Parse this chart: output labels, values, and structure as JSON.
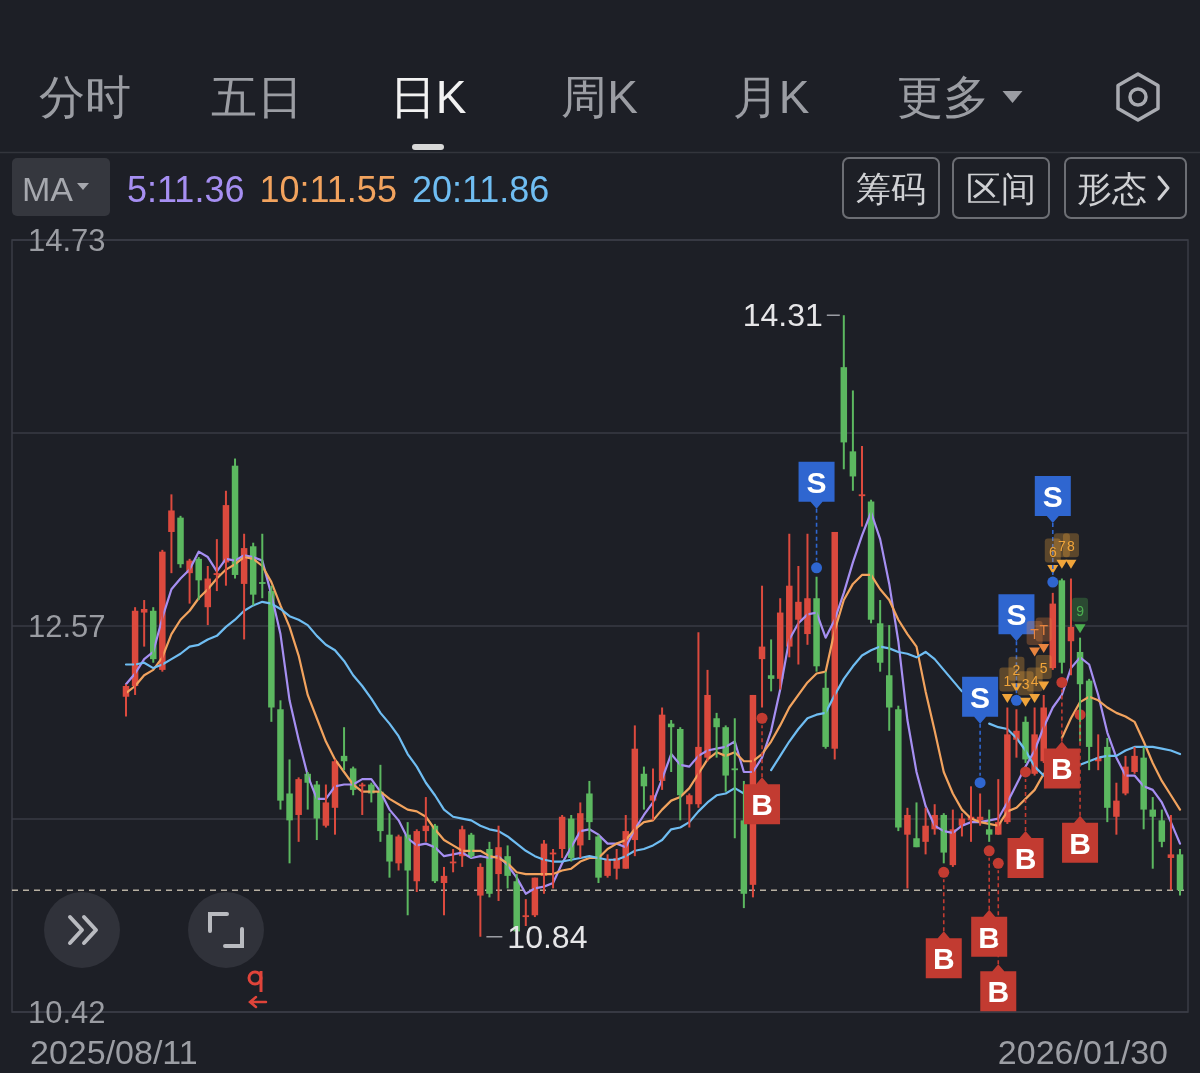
{
  "chart_data": {
    "type": "candlestick",
    "categories": [
      null,
      null,
      null,
      null,
      null,
      null,
      null,
      null,
      null,
      null,
      null,
      null,
      null,
      null,
      null,
      null,
      null,
      null,
      null,
      null,
      null,
      null,
      null,
      null,
      null,
      null,
      null,
      null,
      null,
      null,
      null,
      null,
      null,
      null,
      null,
      null,
      null,
      null,
      null,
      null,
      null,
      null,
      null,
      null,
      null,
      null,
      null,
      null,
      null,
      null,
      null,
      null,
      null,
      null,
      null,
      null,
      null,
      null,
      null,
      null,
      null,
      null,
      null,
      null,
      null,
      null,
      null,
      null,
      null,
      null,
      null,
      null,
      null,
      null,
      null,
      null,
      null,
      null,
      null,
      null,
      null,
      null,
      null,
      null,
      null,
      null,
      null,
      null,
      null,
      null,
      null,
      null,
      null,
      null,
      null,
      null,
      null,
      null,
      null,
      null,
      null,
      null,
      null,
      null,
      null,
      null,
      null,
      null,
      null,
      null,
      null,
      null,
      null,
      null,
      null,
      null,
      null
    ],
    "ohlc": [
      [
        12.18,
        12.25,
        12.07,
        12.24
      ],
      [
        12.24,
        12.68,
        12.19,
        12.66
      ],
      [
        12.65,
        12.72,
        12.46,
        12.67
      ],
      [
        12.66,
        12.68,
        12.37,
        12.39
      ],
      [
        12.33,
        13.0,
        12.32,
        12.99
      ],
      [
        13.1,
        13.31,
        12.87,
        13.22
      ],
      [
        13.18,
        13.19,
        12.9,
        12.92
      ],
      [
        12.87,
        12.95,
        12.7,
        12.94
      ],
      [
        12.95,
        12.96,
        12.72,
        12.83
      ],
      [
        12.68,
        12.91,
        12.58,
        12.84
      ],
      [
        12.86,
        13.06,
        12.77,
        12.87
      ],
      [
        12.93,
        13.33,
        12.8,
        13.25
      ],
      [
        13.47,
        13.51,
        12.84,
        12.86
      ],
      [
        12.81,
        13.09,
        12.5,
        13.01
      ],
      [
        13.02,
        13.04,
        12.69,
        12.75
      ],
      [
        12.82,
        13.09,
        12.73,
        12.81
      ],
      [
        12.77,
        12.8,
        12.04,
        12.12
      ],
      [
        12.11,
        12.16,
        11.55,
        11.6
      ],
      [
        11.64,
        11.83,
        11.25,
        11.49
      ],
      [
        11.52,
        11.73,
        11.37,
        11.72
      ],
      [
        11.75,
        11.76,
        11.55,
        11.7
      ],
      [
        11.69,
        11.71,
        11.38,
        11.5
      ],
      [
        11.46,
        11.69,
        11.45,
        11.59
      ],
      [
        11.56,
        11.83,
        11.41,
        11.82
      ],
      [
        11.85,
        12.01,
        11.77,
        11.82
      ],
      [
        11.78,
        11.79,
        11.63,
        11.66
      ],
      [
        11.68,
        11.7,
        11.52,
        11.69
      ],
      [
        11.69,
        11.7,
        11.59,
        11.64
      ],
      [
        11.65,
        11.8,
        11.37,
        11.43
      ],
      [
        11.41,
        11.53,
        11.17,
        11.26
      ],
      [
        11.25,
        11.41,
        11.21,
        11.4
      ],
      [
        11.41,
        11.48,
        10.96,
        11.21
      ],
      [
        11.15,
        11.44,
        11.09,
        11.43
      ],
      [
        11.43,
        11.62,
        11.37,
        11.46
      ],
      [
        11.46,
        11.47,
        11.14,
        11.15
      ],
      [
        11.14,
        11.23,
        10.96,
        11.18
      ],
      [
        11.25,
        11.33,
        11.2,
        11.26
      ],
      [
        11.29,
        11.46,
        11.23,
        11.44
      ],
      [
        11.41,
        11.42,
        11.28,
        11.29
      ],
      [
        11.07,
        11.25,
        10.84,
        11.23
      ],
      [
        11.33,
        11.37,
        11.06,
        11.08
      ],
      [
        11.19,
        11.46,
        11.04,
        11.34
      ],
      [
        11.29,
        11.35,
        11.11,
        11.18
      ],
      [
        11.15,
        11.19,
        10.87,
        10.87
      ],
      [
        10.95,
        11.05,
        10.9,
        10.96
      ],
      [
        10.96,
        11.17,
        10.95,
        11.17
      ],
      [
        11.18,
        11.38,
        11.08,
        11.36
      ],
      [
        11.3,
        11.33,
        11.11,
        11.31
      ],
      [
        11.33,
        11.52,
        11.28,
        11.51
      ],
      [
        11.5,
        11.52,
        11.26,
        11.28
      ],
      [
        11.35,
        11.59,
        11.28,
        11.53
      ],
      [
        11.64,
        11.71,
        11.38,
        11.48
      ],
      [
        11.4,
        11.41,
        11.14,
        11.17
      ],
      [
        11.18,
        11.3,
        11.17,
        11.27
      ],
      [
        11.22,
        11.33,
        11.16,
        11.28
      ],
      [
        11.22,
        11.52,
        11.22,
        11.43
      ],
      [
        11.38,
        12.02,
        11.29,
        11.89
      ],
      [
        11.75,
        11.79,
        11.55,
        11.68
      ],
      [
        11.6,
        11.78,
        11.49,
        11.63
      ],
      [
        11.71,
        12.12,
        11.66,
        12.08
      ],
      [
        12.03,
        12.05,
        11.76,
        12.01
      ],
      [
        12.0,
        12.01,
        11.49,
        11.63
      ],
      [
        11.58,
        11.64,
        11.45,
        11.63
      ],
      [
        11.58,
        12.54,
        11.56,
        11.9
      ],
      [
        11.84,
        12.33,
        11.82,
        12.19
      ],
      [
        12.06,
        12.09,
        11.84,
        12.01
      ],
      [
        12.01,
        12.02,
        11.65,
        11.74
      ],
      [
        11.78,
        12.06,
        11.39,
        11.77
      ],
      [
        11.49,
        11.71,
        11.0,
        11.08
      ],
      [
        11.13,
        12.19,
        11.06,
        12.19
      ],
      [
        12.39,
        12.8,
        12.12,
        12.46
      ],
      [
        12.3,
        12.5,
        12.21,
        12.28
      ],
      [
        12.28,
        12.73,
        12.22,
        12.65
      ],
      [
        12.46,
        13.09,
        12.4,
        12.8
      ],
      [
        12.61,
        12.91,
        12.36,
        12.71
      ],
      [
        12.53,
        13.09,
        12.47,
        12.73
      ],
      [
        12.73,
        12.85,
        12.32,
        12.35
      ],
      [
        12.23,
        12.32,
        11.89,
        11.9
      ],
      [
        11.89,
        13.1,
        11.83,
        13.1
      ],
      [
        14.02,
        14.31,
        13.45,
        13.6
      ],
      [
        13.55,
        13.89,
        13.33,
        13.41
      ],
      [
        13.3,
        13.58,
        13.13,
        13.31
      ],
      [
        13.27,
        13.28,
        12.59,
        12.61
      ],
      [
        12.59,
        12.72,
        12.32,
        12.37
      ],
      [
        12.3,
        12.58,
        11.99,
        12.12
      ],
      [
        12.11,
        12.13,
        11.43,
        11.45
      ],
      [
        11.41,
        11.56,
        11.11,
        11.52
      ],
      [
        11.39,
        11.59,
        11.34,
        11.34
      ],
      [
        11.37,
        11.56,
        11.3,
        11.46
      ],
      [
        11.44,
        11.58,
        11.41,
        11.52
      ],
      [
        11.52,
        11.53,
        11.25,
        11.31
      ],
      [
        11.24,
        11.55,
        11.23,
        11.44
      ],
      [
        11.46,
        11.53,
        11.4,
        11.5
      ],
      [
        11.49,
        11.68,
        11.37,
        11.51
      ],
      [
        11.49,
        11.64,
        11.46,
        11.51
      ],
      [
        11.44,
        11.55,
        11.37,
        11.41
      ],
      [
        11.41,
        11.72,
        11.41,
        11.48
      ],
      [
        11.48,
        12.12,
        11.47,
        11.97
      ],
      [
        11.94,
        12.11,
        11.84,
        11.99
      ],
      [
        12.04,
        12.07,
        11.81,
        11.83
      ],
      [
        11.75,
        12.12,
        11.74,
        11.97
      ],
      [
        11.82,
        12.19,
        11.81,
        12.12
      ],
      [
        12.34,
        12.76,
        12.33,
        12.7
      ],
      [
        12.83,
        12.84,
        12.31,
        12.37
      ],
      [
        12.49,
        12.84,
        12.3,
        12.57
      ],
      [
        12.43,
        12.51,
        11.93,
        12.25
      ],
      [
        12.27,
        12.28,
        11.77,
        11.9
      ],
      [
        11.82,
        11.97,
        11.77,
        11.84
      ],
      [
        11.9,
        11.95,
        11.48,
        11.56
      ],
      [
        11.51,
        11.7,
        11.41,
        11.6
      ],
      [
        11.64,
        11.85,
        11.63,
        11.79
      ],
      [
        11.76,
        11.9,
        11.75,
        11.85
      ],
      [
        11.84,
        11.9,
        11.44,
        11.55
      ],
      [
        11.55,
        11.62,
        11.22,
        11.51
      ],
      [
        11.49,
        11.55,
        11.34,
        11.37
      ],
      [
        11.28,
        11.52,
        11.1,
        11.3
      ],
      [
        11.3,
        11.33,
        11.07,
        11.1
      ]
    ],
    "colors": [
      "#dc4a3e",
      "#dc4a3e",
      "#dc4a3e",
      "#5cb860",
      "#dc4a3e",
      "#dc4a3e",
      "#5cb860",
      "#dc4a3e",
      "#5cb860",
      "#dc4a3e",
      "#dc4a3e",
      "#dc4a3e",
      "#5cb860",
      "#dc4a3e",
      "#5cb860",
      "#5cb860",
      "#5cb860",
      "#5cb860",
      "#5cb860",
      "#dc4a3e",
      "#5cb860",
      "#5cb860",
      "#dc4a3e",
      "#dc4a3e",
      "#5cb860",
      "#5cb860",
      "#dc4a3e",
      "#5cb860",
      "#5cb860",
      "#5cb860",
      "#dc4a3e",
      "#5cb860",
      "#dc4a3e",
      "#dc4a3e",
      "#5cb860",
      "#dc4a3e",
      "#dc4a3e",
      "#dc4a3e",
      "#5cb860",
      "#dc4a3e",
      "#5cb860",
      "#dc4a3e",
      "#5cb860",
      "#5cb860",
      "#dc4a3e",
      "#dc4a3e",
      "#dc4a3e",
      "#dc4a3e",
      "#dc4a3e",
      "#5cb860",
      "#dc4a3e",
      "#5cb860",
      "#5cb860",
      "#dc4a3e",
      "#dc4a3e",
      "#dc4a3e",
      "#dc4a3e",
      "#5cb860",
      "#dc4a3e",
      "#dc4a3e",
      "#5cb860",
      "#5cb860",
      "#dc4a3e",
      "#dc4a3e",
      "#dc4a3e",
      "#5cb860",
      "#5cb860",
      "#5cb860",
      "#5cb860",
      "#dc4a3e",
      "#dc4a3e",
      "#5cb860",
      "#dc4a3e",
      "#dc4a3e",
      "#dc4a3e",
      "#dc4a3e",
      "#5cb860",
      "#5cb860",
      "#dc4a3e",
      "#5cb860",
      "#5cb860",
      "#dc4a3e",
      "#5cb860",
      "#5cb860",
      "#5cb860",
      "#5cb860",
      "#dc4a3e",
      "#5cb860",
      "#dc4a3e",
      "#dc4a3e",
      "#5cb860",
      "#dc4a3e",
      "#dc4a3e",
      "#dc4a3e",
      "#dc4a3e",
      "#5cb860",
      "#dc4a3e",
      "#dc4a3e",
      "#dc4a3e",
      "#5cb860",
      "#dc4a3e",
      "#dc4a3e",
      "#dc4a3e",
      "#5cb860",
      "#dc4a3e",
      "#5cb860",
      "#5cb860",
      "#dc4a3e",
      "#5cb860",
      "#dc4a3e",
      "#dc4a3e",
      "#dc4a3e",
      "#5cb860",
      "#5cb860",
      "#5cb860",
      "#dc4a3e",
      "#5cb860"
    ],
    "series": [
      {
        "name": "5:11.36",
        "type": "line",
        "color": "#a68ff2",
        "values": [
          12.25,
          12.31,
          12.39,
          12.43,
          12.62,
          12.78,
          12.84,
          12.89,
          12.99,
          12.96,
          12.88,
          12.95,
          12.94,
          12.97,
          12.96,
          12.94,
          12.75,
          12.53,
          12.16,
          11.94,
          11.74,
          11.61,
          11.61,
          11.68,
          11.69,
          11.69,
          11.72,
          11.72,
          11.65,
          11.55,
          11.49,
          11.39,
          11.35,
          11.36,
          11.34,
          11.29,
          11.3,
          11.31,
          11.28,
          11.29,
          11.28,
          11.29,
          11.24,
          11.17,
          11.08,
          11.11,
          11.12,
          11.14,
          11.25,
          11.34,
          11.43,
          11.44,
          11.41,
          11.36,
          11.36,
          11.34,
          11.44,
          11.52,
          11.59,
          11.72,
          11.86,
          11.8,
          11.79,
          11.85,
          11.88,
          11.89,
          11.9,
          11.93,
          11.76,
          11.76,
          11.84,
          11.99,
          12.22,
          12.5,
          12.59,
          12.64,
          12.65,
          12.51,
          12.61,
          12.76,
          12.93,
          13.08,
          13.21,
          13.06,
          12.81,
          12.49,
          12.05,
          11.76,
          11.57,
          11.46,
          11.43,
          11.42,
          11.46,
          11.48,
          11.48,
          11.49,
          11.5,
          11.59,
          11.69,
          11.79,
          11.88,
          12.01,
          12.12,
          12.19,
          12.34,
          12.4,
          12.36,
          12.19,
          11.98,
          11.84,
          11.74,
          11.74,
          11.68,
          11.66,
          11.59,
          11.48,
          11.36
        ]
      },
      {
        "name": "10:11.55",
        "type": "line",
        "color": "#f2a35e",
        "values": [
          12.2,
          12.24,
          12.3,
          12.33,
          12.4,
          12.53,
          12.61,
          12.66,
          12.73,
          12.78,
          12.84,
          12.89,
          12.92,
          12.96,
          12.95,
          12.91,
          12.82,
          12.69,
          12.57,
          12.41,
          12.19,
          12.06,
          11.93,
          11.83,
          11.76,
          11.69,
          11.65,
          11.65,
          11.65,
          11.61,
          11.58,
          11.55,
          11.54,
          11.51,
          11.44,
          11.38,
          11.35,
          11.32,
          11.32,
          11.32,
          11.29,
          11.28,
          11.25,
          11.2,
          11.19,
          11.19,
          11.19,
          11.19,
          11.21,
          11.22,
          11.26,
          11.28,
          11.28,
          11.33,
          11.36,
          11.38,
          11.44,
          11.48,
          11.49,
          11.55,
          11.6,
          11.62,
          11.67,
          11.75,
          11.83,
          11.87,
          11.85,
          11.87,
          11.82,
          11.82,
          11.86,
          11.93,
          12.02,
          12.12,
          12.19,
          12.26,
          12.31,
          12.32,
          12.55,
          12.72,
          12.81,
          12.86,
          12.86,
          12.78,
          12.72,
          12.61,
          12.53,
          12.46,
          12.21,
          11.99,
          11.76,
          11.64,
          11.55,
          11.5,
          11.48,
          11.47,
          11.46,
          11.54,
          11.56,
          11.61,
          11.66,
          11.75,
          null,
          11.95,
          12.06,
          12.15,
          12.18,
          12.16,
          12.12,
          12.09,
          12.07,
          12.04,
          11.93,
          11.81,
          11.71,
          11.63,
          11.55
        ]
      },
      {
        "name": "20:11.86",
        "type": "line",
        "color": "#6fbdf2",
        "values": [
          12.36,
          12.36,
          12.37,
          12.34,
          12.36,
          12.39,
          12.42,
          12.46,
          12.47,
          12.5,
          12.52,
          12.57,
          12.61,
          12.66,
          12.69,
          12.71,
          12.7,
          12.67,
          12.63,
          12.61,
          12.58,
          12.52,
          12.47,
          12.44,
          12.38,
          12.3,
          12.24,
          12.17,
          12.09,
          12.03,
          11.96,
          11.86,
          11.79,
          11.7,
          11.63,
          11.55,
          11.51,
          11.5,
          11.49,
          11.46,
          11.44,
          11.43,
          11.4,
          11.36,
          11.32,
          11.29,
          11.27,
          11.26,
          11.26,
          11.27,
          11.28,
          11.29,
          11.28,
          11.27,
          11.27,
          11.29,
          11.32,
          11.33,
          11.35,
          11.38,
          11.44,
          11.45,
          11.48,
          11.54,
          11.59,
          11.63,
          11.64,
          11.67,
          11.64,
          null,
          null,
          11.77,
          11.85,
          11.93,
          12.0,
          12.06,
          12.08,
          12.09,
          12.19,
          12.28,
          12.35,
          12.41,
          12.44,
          12.46,
          12.45,
          12.43,
          12.42,
          12.4,
          12.43,
          12.39,
          12.33,
          12.27,
          12.21,
          null,
          null,
          12.03,
          12.01,
          12.0,
          11.95,
          11.88,
          11.79,
          11.74,
          null,
          null,
          null,
          11.8,
          11.82,
          11.84,
          11.85,
          11.85,
          11.88,
          11.9,
          11.9,
          11.9,
          11.89,
          11.88,
          11.86
        ]
      },
      {
        "type": "scatter",
        "marker": "circle",
        "color": "#2f66d0",
        "values": [
          null,
          null,
          null,
          null,
          null,
          null,
          null,
          null,
          null,
          null,
          null,
          null,
          null,
          null,
          null,
          null,
          null,
          null,
          null,
          null,
          null,
          null,
          null,
          null,
          null,
          null,
          null,
          null,
          null,
          null,
          null,
          null,
          null,
          null,
          null,
          null,
          null,
          null,
          null,
          null,
          null,
          null,
          null,
          null,
          null,
          null,
          null,
          null,
          null,
          null,
          null,
          null,
          null,
          null,
          null,
          null,
          null,
          null,
          null,
          null,
          null,
          null,
          null,
          null,
          null,
          null,
          null,
          null,
          null,
          null,
          null,
          null,
          null,
          null,
          null,
          null,
          12.9,
          null,
          null,
          null,
          null,
          null,
          null,
          null,
          null,
          null,
          null,
          null,
          null,
          null,
          null,
          null,
          null,
          null,
          11.7,
          null,
          null,
          null,
          12.16,
          null,
          null,
          null,
          12.82,
          null,
          null,
          null,
          null,
          null,
          null,
          null,
          null,
          null,
          null,
          null,
          null,
          null,
          null
        ],
        "value_labels": [
          null,
          null,
          null,
          null,
          null,
          null,
          null,
          null,
          null,
          null,
          null,
          null,
          null,
          null,
          null,
          null,
          null,
          null,
          null,
          null,
          null,
          null,
          null,
          null,
          null,
          null,
          null,
          null,
          null,
          null,
          null,
          null,
          null,
          null,
          null,
          null,
          null,
          null,
          null,
          null,
          null,
          null,
          null,
          null,
          null,
          null,
          null,
          null,
          null,
          null,
          null,
          null,
          null,
          null,
          null,
          null,
          null,
          null,
          null,
          null,
          null,
          null,
          null,
          null,
          null,
          null,
          null,
          null,
          null,
          null,
          null,
          null,
          null,
          null,
          null,
          null,
          "S",
          null,
          null,
          null,
          null,
          null,
          null,
          null,
          null,
          null,
          null,
          null,
          null,
          null,
          null,
          null,
          null,
          null,
          "S",
          null,
          null,
          null,
          "S",
          null,
          null,
          null,
          "S",
          null,
          null,
          null,
          null,
          null,
          null,
          null,
          null,
          null,
          null,
          null,
          null,
          null,
          null
        ]
      },
      {
        "type": "scatter",
        "marker": "circle",
        "color": "#c23b31",
        "values": [
          null,
          null,
          null,
          null,
          null,
          null,
          null,
          null,
          null,
          null,
          null,
          null,
          null,
          null,
          null,
          null,
          null,
          null,
          null,
          null,
          null,
          null,
          null,
          null,
          null,
          null,
          null,
          null,
          null,
          null,
          null,
          null,
          null,
          null,
          null,
          null,
          null,
          null,
          null,
          null,
          null,
          null,
          null,
          null,
          null,
          null,
          null,
          null,
          null,
          null,
          null,
          null,
          null,
          null,
          null,
          null,
          null,
          null,
          null,
          null,
          null,
          null,
          null,
          null,
          null,
          null,
          null,
          null,
          null,
          null,
          12.06,
          null,
          null,
          null,
          null,
          null,
          null,
          null,
          null,
          null,
          null,
          null,
          null,
          null,
          null,
          null,
          null,
          null,
          null,
          null,
          11.2,
          null,
          null,
          null,
          null,
          11.32,
          11.25,
          null,
          null,
          11.76,
          null,
          null,
          null,
          12.26,
          null,
          12.08,
          null,
          null,
          null,
          null,
          null,
          null,
          null,
          null,
          null,
          null,
          null
        ],
        "value_labels": [
          null,
          null,
          null,
          null,
          null,
          null,
          null,
          null,
          null,
          null,
          null,
          null,
          null,
          null,
          null,
          null,
          null,
          null,
          null,
          null,
          null,
          null,
          null,
          null,
          null,
          null,
          null,
          null,
          null,
          null,
          null,
          null,
          null,
          null,
          null,
          null,
          null,
          null,
          null,
          null,
          null,
          null,
          null,
          null,
          null,
          null,
          null,
          null,
          null,
          null,
          null,
          null,
          null,
          null,
          null,
          null,
          null,
          null,
          null,
          null,
          null,
          null,
          null,
          null,
          null,
          null,
          null,
          null,
          null,
          null,
          "B",
          null,
          null,
          null,
          null,
          null,
          null,
          null,
          null,
          null,
          null,
          null,
          null,
          null,
          null,
          null,
          null,
          null,
          null,
          null,
          "B",
          null,
          null,
          null,
          null,
          "B",
          "B",
          null,
          null,
          "B",
          null,
          null,
          null,
          "B",
          null,
          "B",
          null,
          null,
          null,
          null,
          null,
          null,
          null,
          null,
          null,
          null,
          null
        ]
      },
      {
        "type": "scatter",
        "marker": "triangle",
        "color": "#e8843f",
        "values": [
          null,
          null,
          null,
          null,
          null,
          null,
          null,
          null,
          null,
          null,
          null,
          null,
          null,
          null,
          null,
          null,
          null,
          null,
          null,
          null,
          null,
          null,
          null,
          null,
          null,
          null,
          null,
          null,
          null,
          null,
          null,
          null,
          null,
          null,
          null,
          null,
          null,
          null,
          null,
          null,
          null,
          null,
          null,
          null,
          null,
          null,
          null,
          null,
          null,
          null,
          null,
          null,
          null,
          null,
          null,
          null,
          null,
          null,
          null,
          null,
          null,
          null,
          null,
          null,
          null,
          null,
          null,
          null,
          null,
          null,
          null,
          null,
          null,
          null,
          null,
          null,
          null,
          null,
          null,
          null,
          null,
          null,
          null,
          null,
          null,
          null,
          null,
          null,
          null,
          null,
          null,
          null,
          null,
          null,
          null,
          null,
          null,
          null,
          null,
          null,
          12.43,
          12.45,
          null,
          null,
          null,
          null,
          null,
          null,
          null,
          null,
          null,
          null,
          null,
          null,
          null,
          null,
          null
        ],
        "value_labels": [
          null,
          null,
          null,
          null,
          null,
          null,
          null,
          null,
          null,
          null,
          null,
          null,
          null,
          null,
          null,
          null,
          null,
          null,
          null,
          null,
          null,
          null,
          null,
          null,
          null,
          null,
          null,
          null,
          null,
          null,
          null,
          null,
          null,
          null,
          null,
          null,
          null,
          null,
          null,
          null,
          null,
          null,
          null,
          null,
          null,
          null,
          null,
          null,
          null,
          null,
          null,
          null,
          null,
          null,
          null,
          null,
          null,
          null,
          null,
          null,
          null,
          null,
          null,
          null,
          null,
          null,
          null,
          null,
          null,
          null,
          null,
          null,
          null,
          null,
          null,
          null,
          null,
          null,
          null,
          null,
          null,
          null,
          null,
          null,
          null,
          null,
          null,
          null,
          null,
          null,
          null,
          null,
          null,
          null,
          null,
          null,
          null,
          null,
          null,
          null,
          "T",
          "T",
          null,
          null,
          null,
          null,
          null,
          null,
          null,
          null,
          null,
          null,
          null,
          null,
          null,
          null,
          null
        ]
      },
      {
        "type": "scatter",
        "marker": "triangle",
        "color": "#f0a43a",
        "values": [
          null,
          null,
          null,
          null,
          null,
          null,
          null,
          null,
          null,
          null,
          null,
          null,
          null,
          null,
          null,
          null,
          null,
          null,
          null,
          null,
          null,
          null,
          null,
          null,
          null,
          null,
          null,
          null,
          null,
          null,
          null,
          null,
          null,
          null,
          null,
          null,
          null,
          null,
          null,
          null,
          null,
          null,
          null,
          null,
          null,
          null,
          null,
          null,
          null,
          null,
          null,
          null,
          null,
          null,
          null,
          null,
          null,
          null,
          null,
          null,
          null,
          null,
          null,
          null,
          null,
          null,
          null,
          null,
          null,
          null,
          null,
          null,
          null,
          null,
          null,
          null,
          null,
          null,
          null,
          null,
          null,
          null,
          null,
          null,
          null,
          null,
          null,
          null,
          null,
          null,
          null,
          null,
          null,
          null,
          null,
          null,
          null,
          12.17,
          12.23,
          12.15,
          12.17,
          12.24,
          12.89,
          12.92,
          12.92,
          null,
          null,
          null,
          null,
          null,
          null,
          null,
          null,
          null,
          null,
          null,
          null
        ]
      },
      {
        "type": "scatter",
        "marker": "triangle",
        "color": "#4caf50",
        "values": [
          null,
          null,
          null,
          null,
          null,
          null,
          null,
          null,
          null,
          null,
          null,
          null,
          null,
          null,
          null,
          null,
          null,
          null,
          null,
          null,
          null,
          null,
          null,
          null,
          null,
          null,
          null,
          null,
          null,
          null,
          null,
          null,
          null,
          null,
          null,
          null,
          null,
          null,
          null,
          null,
          null,
          null,
          null,
          null,
          null,
          null,
          null,
          null,
          null,
          null,
          null,
          null,
          null,
          null,
          null,
          null,
          null,
          null,
          null,
          null,
          null,
          null,
          null,
          null,
          null,
          null,
          null,
          null,
          null,
          null,
          null,
          null,
          null,
          null,
          null,
          null,
          null,
          null,
          null,
          null,
          null,
          null,
          null,
          null,
          null,
          null,
          null,
          null,
          null,
          null,
          null,
          null,
          null,
          null,
          null,
          null,
          null,
          null,
          null,
          null,
          null,
          null,
          null,
          null,
          null,
          12.56,
          null,
          null,
          null,
          null,
          null,
          null,
          null,
          null,
          null,
          null,
          null
        ]
      }
    ],
    "ylim": [
      10.42,
      14.73
    ],
    "yticks": [
      14.73,
      {
        "value": 13.6525,
        "label": null
      },
      {
        "value": 12.575,
        "label": "12.57"
      },
      {
        "value": 11.4975,
        "label": null
      },
      10.42
    ],
    "grid": "y",
    "legend": "top left",
    "legend_title": "MA",
    "ref_lines": [
      {
        "axis": "y",
        "value": 11.1,
        "color": "#b8b0a2",
        "line_style": "dashed"
      }
    ],
    "annotations": [
      "14.31",
      "10.84",
      "分时",
      "五日",
      "日K",
      "周K",
      "月K",
      "更多",
      "筹码",
      "区间",
      "形态",
      "2025/08/11",
      "2026/01/30",
      "1",
      "2",
      "3",
      "4",
      "5",
      "6",
      "7",
      "8",
      "9"
    ]
  }
}
